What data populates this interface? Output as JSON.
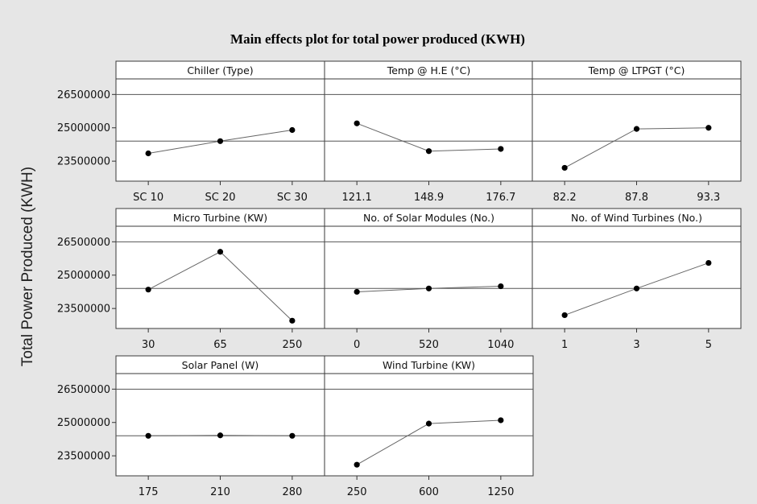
{
  "chart_data": {
    "type": "line",
    "title": "Main effects plot for total power produced (KWH)",
    "ylabel": "Total Power Produced (KWH)",
    "yticks": [
      23500000,
      25000000,
      26500000
    ],
    "ytick_labels": [
      "23500000",
      "25000000",
      "26500000"
    ],
    "ylim": [
      22600000,
      27200000
    ],
    "reference_line": 24400000,
    "background_color": "#e6e6e6",
    "panel_color": "#ffffff",
    "line_color": "#666666",
    "marker_color": "#000000",
    "panels": [
      {
        "title": "Chiller (Type)",
        "x": [
          "SC 10",
          "SC 20",
          "SC 30"
        ],
        "values": [
          23850000,
          24400000,
          24900000
        ]
      },
      {
        "title": "Temp @ H.E (°C)",
        "x": [
          "121.1",
          "148.9",
          "176.7"
        ],
        "values": [
          25200000,
          23950000,
          24050000
        ]
      },
      {
        "title": "Temp @ LTPGT (°C)",
        "x": [
          "82.2",
          "87.8",
          "93.3"
        ],
        "values": [
          23200000,
          24950000,
          25000000
        ]
      },
      {
        "title": "Micro Turbine (KW)",
        "x": [
          "30",
          "65",
          "250"
        ],
        "values": [
          24350000,
          26050000,
          22950000
        ]
      },
      {
        "title": "No. of Solar Modules (No.)",
        "x": [
          "0",
          "520",
          "1040"
        ],
        "values": [
          24250000,
          24400000,
          24500000
        ]
      },
      {
        "title": "No. of Wind Turbines (No.)",
        "x": [
          "1",
          "3",
          "5"
        ],
        "values": [
          23200000,
          24400000,
          25550000
        ]
      },
      {
        "title": "Solar Panel (W)",
        "x": [
          "175",
          "210",
          "280"
        ],
        "values": [
          24400000,
          24420000,
          24400000
        ]
      },
      {
        "title": "Wind Turbine (KW)",
        "x": [
          "250",
          "600",
          "1250"
        ],
        "values": [
          23100000,
          24950000,
          25100000
        ]
      }
    ]
  }
}
